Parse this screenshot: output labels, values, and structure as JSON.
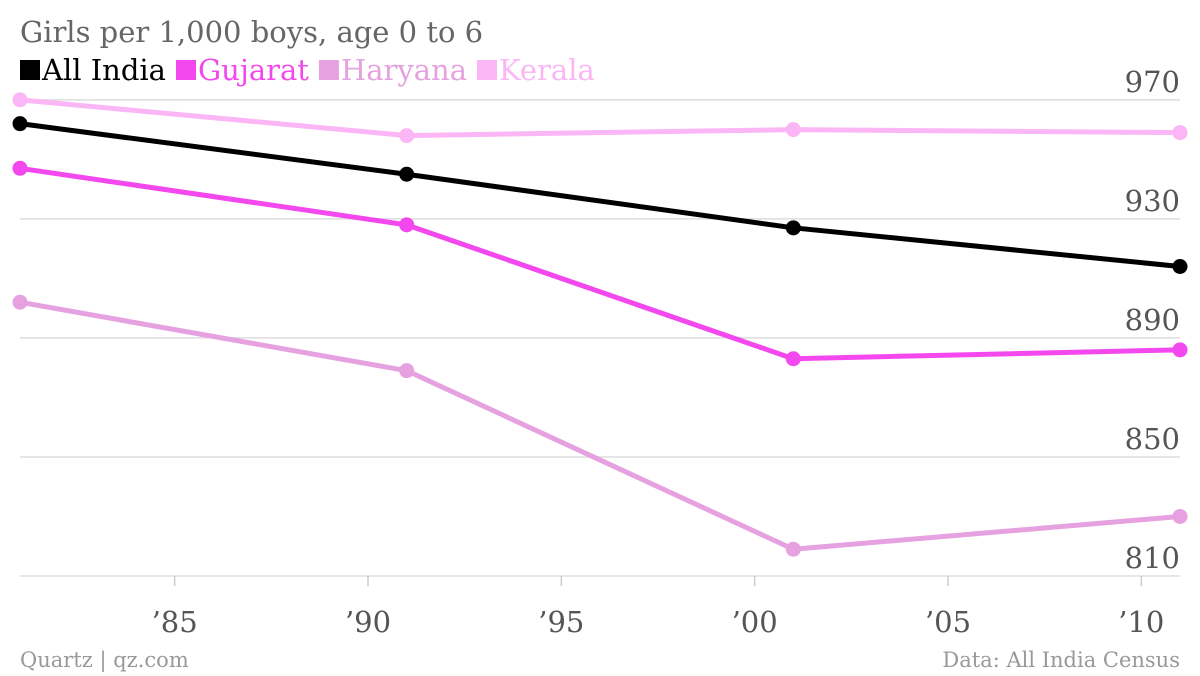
{
  "chart_data": {
    "type": "line",
    "title": "Girls per 1,000 boys, age 0 to 6",
    "x": [
      1981,
      1991,
      2001,
      2011
    ],
    "xticks": [
      1985,
      1990,
      1995,
      2000,
      2005,
      2010
    ],
    "xtick_labels": [
      "’85",
      "’90",
      "’95",
      "’00",
      "’05",
      "’10"
    ],
    "xlim": [
      1981,
      2011
    ],
    "ylim": [
      810,
      976
    ],
    "yticks": [
      810,
      850,
      890,
      930,
      970
    ],
    "ytick_labels": [
      "810",
      "850",
      "890",
      "930",
      "970"
    ],
    "grid": true,
    "legend_position": "top-left",
    "series": [
      {
        "name": "All India",
        "color": "#000000",
        "values": [
          962,
          945,
          927,
          914
        ]
      },
      {
        "name": "Gujarat",
        "color": "#f348ee",
        "values": [
          947,
          928,
          883,
          886
        ]
      },
      {
        "name": "Haryana",
        "color": "#e6a2e0",
        "values": [
          902,
          879,
          819,
          830
        ]
      },
      {
        "name": "Kerala",
        "color": "#fbb6f6",
        "values": [
          970,
          958,
          960,
          959
        ]
      }
    ]
  },
  "footer": {
    "left": "Quartz | qz.com",
    "right": "Data: All India Census"
  }
}
